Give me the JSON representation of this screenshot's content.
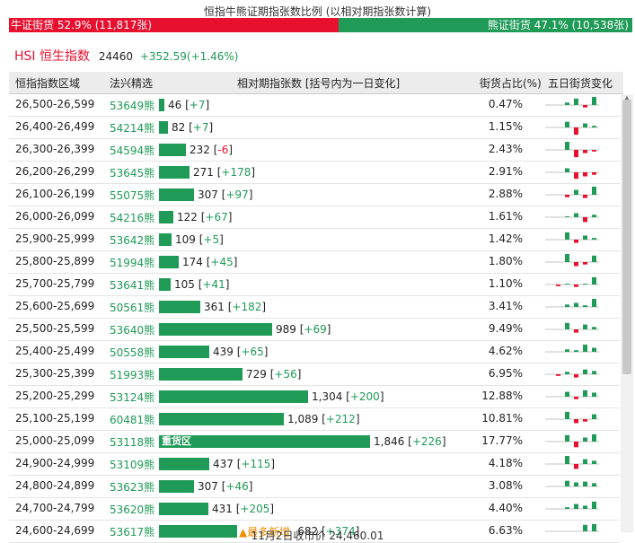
{
  "title": "恒指牛熊证期指张数比例 (以相对期指张数计算)",
  "ratio": {
    "bull_label": "牛证街货 52.9% (11,817张)",
    "bear_label": "熊证街货 47.1% (10,538张)",
    "bull_pct": 52.9,
    "bull_color": "#e8102f",
    "bear_color": "#1f9a57"
  },
  "index": {
    "name": "HSI 恒生指数",
    "value": "24460",
    "change": "+352.59(+1.46%)"
  },
  "headers": {
    "range": "恒指指数区域",
    "pick": "法兴精选",
    "contracts": "相对期指张数 [括号内为一日变化]",
    "share": "街货占比(%)",
    "five_day": "五日街货变化"
  },
  "rows": [
    {
      "range": "26,500-26,599",
      "code": "53649熊",
      "count": "46",
      "change": "+7",
      "change_sign": "pos",
      "share": "0.47%",
      "bar_value": 46,
      "label": "",
      "tag": "",
      "spark": [
        0,
        0.3,
        0.8,
        -0.3,
        1.0
      ]
    },
    {
      "range": "26,400-26,499",
      "code": "54214熊",
      "count": "82",
      "change": "+7",
      "change_sign": "pos",
      "share": "1.15%",
      "bar_value": 82,
      "label": "",
      "tag": "",
      "spark": [
        0,
        0.7,
        -0.9,
        0.5,
        0.2
      ]
    },
    {
      "range": "26,300-26,399",
      "code": "54594熊",
      "count": "232",
      "change": "-6",
      "change_sign": "neg",
      "share": "2.43%",
      "bar_value": 232,
      "label": "",
      "tag": "",
      "spark": [
        0,
        1.0,
        -0.9,
        -0.4,
        -0.2
      ]
    },
    {
      "range": "26,200-26,299",
      "code": "53645熊",
      "count": "271",
      "change": "+178",
      "change_sign": "pos",
      "share": "2.91%",
      "bar_value": 271,
      "label": "",
      "tag": "",
      "spark": [
        0,
        0.5,
        -0.8,
        -0.5,
        -0.3
      ]
    },
    {
      "range": "26,100-26,199",
      "code": "55075熊",
      "count": "307",
      "change": "+97",
      "change_sign": "pos",
      "share": "2.88%",
      "bar_value": 307,
      "label": "",
      "tag": "",
      "spark": [
        0,
        -0.3,
        0.6,
        -0.4,
        1.0
      ]
    },
    {
      "range": "26,000-26,099",
      "code": "54216熊",
      "count": "122",
      "change": "+67",
      "change_sign": "pos",
      "share": "1.61%",
      "bar_value": 122,
      "label": "",
      "tag": "",
      "spark": [
        0,
        0.1,
        0.5,
        -0.6,
        0.3
      ]
    },
    {
      "range": "25,900-25,999",
      "code": "53642熊",
      "count": "109",
      "change": "+5",
      "change_sign": "pos",
      "share": "1.42%",
      "bar_value": 109,
      "label": "",
      "tag": "",
      "spark": [
        0,
        0.9,
        -0.4,
        0.5,
        0.2
      ]
    },
    {
      "range": "25,800-25,899",
      "code": "51994熊",
      "count": "174",
      "change": "+45",
      "change_sign": "pos",
      "share": "1.80%",
      "bar_value": 174,
      "label": "",
      "tag": "",
      "spark": [
        0,
        1.0,
        -0.5,
        -0.3,
        0.8
      ]
    },
    {
      "range": "25,700-25,799",
      "code": "53641熊",
      "count": "105",
      "change": "+41",
      "change_sign": "pos",
      "share": "1.10%",
      "bar_value": 105,
      "label": "",
      "tag": "",
      "spark": [
        -0.2,
        0.1,
        -0.3,
        0.1,
        0.9
      ]
    },
    {
      "range": "25,600-25,699",
      "code": "50561熊",
      "count": "361",
      "change": "+182",
      "change_sign": "pos",
      "share": "3.41%",
      "bar_value": 361,
      "label": "",
      "tag": "",
      "spark": [
        0,
        0.3,
        0.5,
        0.2,
        1.0
      ]
    },
    {
      "range": "25,500-25,599",
      "code": "53640熊",
      "count": "989",
      "change": "+69",
      "change_sign": "pos",
      "share": "9.49%",
      "bar_value": 989,
      "label": "",
      "tag": "",
      "spark": [
        0,
        0.8,
        -0.4,
        0.6,
        0.3
      ]
    },
    {
      "range": "25,400-25,499",
      "code": "50558熊",
      "count": "439",
      "change": "+65",
      "change_sign": "pos",
      "share": "4.62%",
      "bar_value": 439,
      "label": "",
      "tag": "",
      "spark": [
        0,
        0.3,
        0.2,
        0.9,
        0.5
      ]
    },
    {
      "range": "25,300-25,399",
      "code": "51993熊",
      "count": "729",
      "change": "+56",
      "change_sign": "pos",
      "share": "6.95%",
      "bar_value": 729,
      "label": "",
      "tag": "",
      "spark": [
        -0.2,
        0.3,
        -0.4,
        0.6,
        0.4
      ]
    },
    {
      "range": "25,200-25,299",
      "code": "53124熊",
      "count": "1,304",
      "change": "+200",
      "change_sign": "pos",
      "share": "12.88%",
      "bar_value": 1304,
      "label": "",
      "tag": "",
      "spark": [
        0,
        0.6,
        -0.3,
        0.8,
        0.5
      ]
    },
    {
      "range": "25,100-25,199",
      "code": "60481熊",
      "count": "1,089",
      "change": "+212",
      "change_sign": "pos",
      "share": "10.81%",
      "bar_value": 1089,
      "label": "",
      "tag": "",
      "spark": [
        0,
        0.9,
        -0.5,
        -0.3,
        0.6
      ]
    },
    {
      "range": "25,000-25,099",
      "code": "53118熊",
      "count": "1,846",
      "change": "+226",
      "change_sign": "pos",
      "share": "17.77%",
      "bar_value": 1846,
      "label": "重货区",
      "tag": "",
      "spark": [
        0,
        0.8,
        -0.7,
        0.5,
        0.9
      ]
    },
    {
      "range": "24,900-24,999",
      "code": "53109熊",
      "count": "437",
      "change": "+115",
      "change_sign": "pos",
      "share": "4.18%",
      "bar_value": 437,
      "label": "",
      "tag": "",
      "spark": [
        0,
        1.0,
        -0.6,
        0.6,
        0.4
      ]
    },
    {
      "range": "24,800-24,899",
      "code": "53623熊",
      "count": "307",
      "change": "+46",
      "change_sign": "pos",
      "share": "3.08%",
      "bar_value": 307,
      "label": "",
      "tag": "",
      "spark": [
        0,
        0.7,
        0.5,
        0.6,
        0.4
      ]
    },
    {
      "range": "24,700-24,799",
      "code": "53620熊",
      "count": "431",
      "change": "+205",
      "change_sign": "pos",
      "share": "4.40%",
      "bar_value": 431,
      "label": "",
      "tag": "",
      "spark": [
        0,
        0.2,
        0.6,
        0.4,
        0.9
      ]
    },
    {
      "range": "24,600-24,699",
      "code": "53617熊",
      "count": "682",
      "change": "+374",
      "change_sign": "pos",
      "share": "6.63%",
      "bar_value": 682,
      "label": "",
      "tag": "▲最多新增",
      "spark": [
        0,
        0,
        0,
        0.8,
        0.9
      ]
    }
  ],
  "footer": "11月2日收市价 24,460.01"
}
